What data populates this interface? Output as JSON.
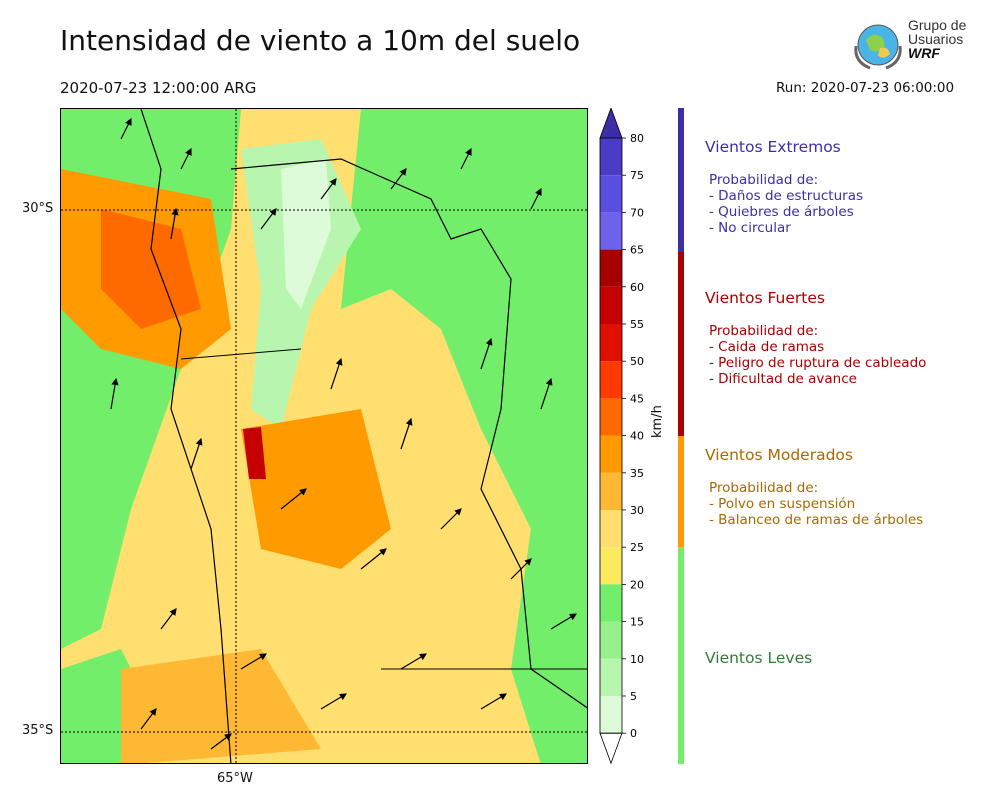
{
  "header": {
    "title": "Intensidad de viento a 10m del suelo",
    "valid_time": "2020-07-23 12:00:00 ARG",
    "run": "Run: 2020-07-23 06:00:00"
  },
  "logo": {
    "line1": "Grupo de",
    "line2": "Usuarios",
    "line3": "WRF"
  },
  "map": {
    "lat_labels": [
      "30°S",
      "35°S"
    ],
    "lon_labels": [
      "65°W"
    ]
  },
  "colorbar": {
    "unit": "km/h",
    "ticks": [
      "80",
      "75",
      "70",
      "65",
      "60",
      "55",
      "50",
      "45",
      "40",
      "35",
      "30",
      "25",
      "20",
      "15",
      "10",
      "5",
      "0"
    ],
    "colors": [
      "#3d2ea8",
      "#4a3cc4",
      "#5a4ede",
      "#6e62ea",
      "#a80000",
      "#c40000",
      "#e01000",
      "#ff3a00",
      "#ff6a00",
      "#ff9a00",
      "#ffb833",
      "#ffdf70",
      "#fbe95e",
      "#72ee6a",
      "#96f08c",
      "#b8f5ae",
      "#ddfbd8",
      "#ffffff"
    ]
  },
  "categories": [
    {
      "title": "Vientos Extremos",
      "color": "#3d2ea8",
      "lines": [
        "Probabilidad de:",
        "- Daños de estructuras",
        "- Quiebres de árboles",
        "- No circular"
      ]
    },
    {
      "title": "Vientos Fuertes",
      "color": "#a80000",
      "lines": [
        "Probabilidad de:",
        "- Caida de ramas",
        "- Peligro de ruptura de cableado",
        "- Dificultad de avance"
      ]
    },
    {
      "title": "Vientos Moderados",
      "color": "#a86a00",
      "bar_color": "#ff9a00",
      "lines": [
        "Probabilidad de:",
        "- Polvo en suspensión",
        "- Balanceo de ramas de árboles"
      ]
    },
    {
      "title": "Vientos Leves",
      "color": "#2e7d32",
      "bar_color": "#72ee6a",
      "lines": []
    }
  ]
}
